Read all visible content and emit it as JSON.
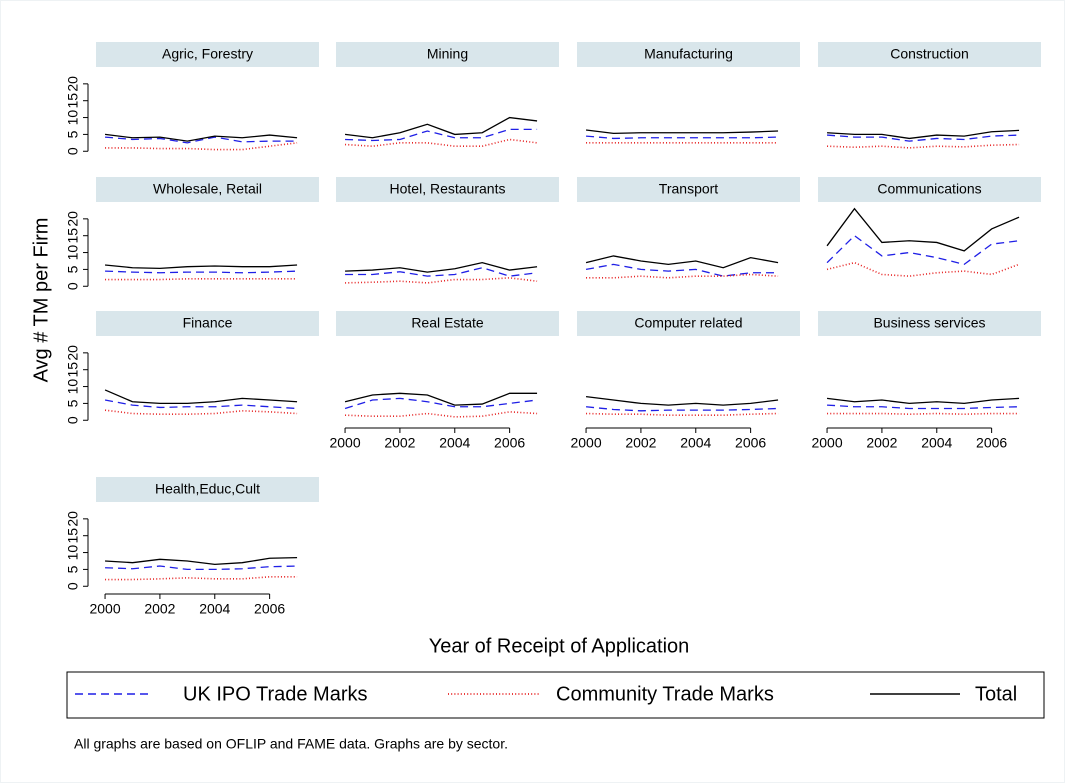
{
  "chart_data": {
    "type": "line",
    "y_label": "Avg # TM per Firm",
    "x_label": "Year of Receipt of Application",
    "note": "All graphs are based on OFLIP and FAME data. Graphs are by sector.",
    "x": [
      2000,
      2001,
      2002,
      2003,
      2004,
      2005,
      2006,
      2007
    ],
    "xlim": [
      1999.67,
      2007.8
    ],
    "xticks": [
      2000,
      2002,
      2004,
      2006
    ],
    "ylim": [
      -2,
      25
    ],
    "yticks": [
      0,
      5,
      10,
      15,
      20
    ],
    "series": [
      {
        "name": "UK IPO Trade Marks",
        "color": "#1f1fe6",
        "dash": "8,5"
      },
      {
        "name": "Community Trade Marks",
        "color": "#e62020",
        "dash": "1,2.2"
      },
      {
        "name": "Total",
        "color": "#000000",
        "dash": "none"
      }
    ],
    "panels": [
      {
        "title": "Agric, Forestry",
        "values": [
          [
            4.2,
            3.5,
            3.8,
            2.5,
            4.2,
            2.8,
            3,
            3
          ],
          [
            1,
            1,
            0.8,
            0.8,
            0.5,
            0.5,
            1.5,
            2.5
          ],
          [
            5,
            4,
            4.2,
            3,
            4.5,
            4,
            4.8,
            4
          ]
        ]
      },
      {
        "title": "Mining",
        "values": [
          [
            3.5,
            3.2,
            3.5,
            6,
            4,
            4,
            6.5,
            6.5
          ],
          [
            2,
            1.5,
            2.5,
            2.5,
            1.5,
            1.5,
            3.5,
            2.5
          ],
          [
            5,
            4,
            5.5,
            8,
            5,
            5.5,
            10,
            9
          ]
        ]
      },
      {
        "title": "Manufacturing",
        "values": [
          [
            4.5,
            3.8,
            4,
            4,
            4,
            4,
            4,
            4.2
          ],
          [
            2.5,
            2.5,
            2.5,
            2.5,
            2.5,
            2.5,
            2.5,
            2.5
          ],
          [
            6.3,
            5.3,
            5.5,
            5.5,
            5.5,
            5.5,
            5.7,
            6
          ]
        ]
      },
      {
        "title": "Construction",
        "values": [
          [
            4.8,
            4.2,
            4.2,
            3,
            3.8,
            3.5,
            4.5,
            4.8
          ],
          [
            1.5,
            1.2,
            1.5,
            1,
            1.5,
            1.3,
            1.8,
            2
          ],
          [
            5.5,
            5,
            5,
            3.8,
            4.8,
            4.5,
            5.8,
            6.2
          ]
        ]
      },
      {
        "title": "Wholesale, Retail",
        "values": [
          [
            4.5,
            4.2,
            4,
            4.2,
            4.2,
            4,
            4.2,
            4.5
          ],
          [
            2,
            2,
            2,
            2.2,
            2.2,
            2.2,
            2.2,
            2.2
          ],
          [
            6.3,
            5.5,
            5.3,
            5.8,
            6,
            5.8,
            5.8,
            6.3
          ]
        ]
      },
      {
        "title": "Hotel, Restaurants",
        "values": [
          [
            3.5,
            3.5,
            4.3,
            3,
            3.5,
            5.5,
            3,
            4
          ],
          [
            1,
            1.2,
            1.5,
            1,
            2,
            2,
            2.5,
            1.5
          ],
          [
            4.5,
            4.8,
            5.5,
            4.2,
            5.2,
            7,
            4.8,
            5.8
          ]
        ]
      },
      {
        "title": "Transport",
        "values": [
          [
            5,
            6.5,
            5,
            4.5,
            5,
            3,
            4,
            4
          ],
          [
            2.5,
            2.5,
            3,
            2.5,
            3,
            3,
            3.5,
            3
          ],
          [
            7,
            9,
            7.5,
            6.5,
            7.5,
            5.5,
            8.5,
            7
          ]
        ]
      },
      {
        "title": "Communications",
        "values": [
          [
            7,
            15,
            9,
            10,
            8.5,
            6.5,
            12.5,
            13.5
          ],
          [
            5,
            7,
            3.5,
            3,
            4,
            4.5,
            3.5,
            6.5
          ],
          [
            12,
            23,
            13,
            13.5,
            13,
            10.5,
            17,
            20.5
          ]
        ]
      },
      {
        "title": "Finance",
        "values": [
          [
            6,
            4.5,
            3.8,
            4,
            4,
            4.5,
            4,
            3.5
          ],
          [
            3,
            2,
            1.8,
            1.8,
            2,
            2.8,
            2.5,
            2
          ],
          [
            9,
            5.5,
            5,
            5,
            5.5,
            6.5,
            6,
            5.5
          ]
        ]
      },
      {
        "title": "Real Estate",
        "values": [
          [
            3.5,
            6,
            6.5,
            5.5,
            4,
            4,
            5,
            6
          ],
          [
            1.5,
            1.2,
            1.2,
            2,
            1,
            1.2,
            2.5,
            2
          ],
          [
            5.5,
            7.5,
            8,
            7.5,
            4.5,
            4.8,
            8,
            8
          ]
        ]
      },
      {
        "title": "Computer related",
        "values": [
          [
            4,
            3.2,
            2.8,
            3,
            3,
            3,
            3.2,
            3.5
          ],
          [
            2,
            1.8,
            1.8,
            1.5,
            1.5,
            1.5,
            1.8,
            2
          ],
          [
            7,
            6,
            5,
            4.5,
            5,
            4.5,
            5,
            6
          ]
        ]
      },
      {
        "title": "Business services",
        "values": [
          [
            4.5,
            4,
            4,
            3.5,
            3.5,
            3.5,
            3.8,
            4
          ],
          [
            2,
            2,
            2,
            1.8,
            2,
            1.8,
            2,
            2
          ],
          [
            6.5,
            5.5,
            6,
            5,
            5.5,
            5,
            6,
            6.5
          ]
        ]
      },
      {
        "title": "Health,Educ,Cult",
        "values": [
          [
            5.5,
            5.2,
            6,
            5,
            5,
            5.2,
            5.8,
            6
          ],
          [
            2,
            2,
            2.2,
            2.5,
            2.2,
            2.2,
            2.8,
            2.8
          ],
          [
            7.5,
            7,
            8,
            7.5,
            6.5,
            7,
            8.3,
            8.5
          ]
        ]
      }
    ]
  }
}
